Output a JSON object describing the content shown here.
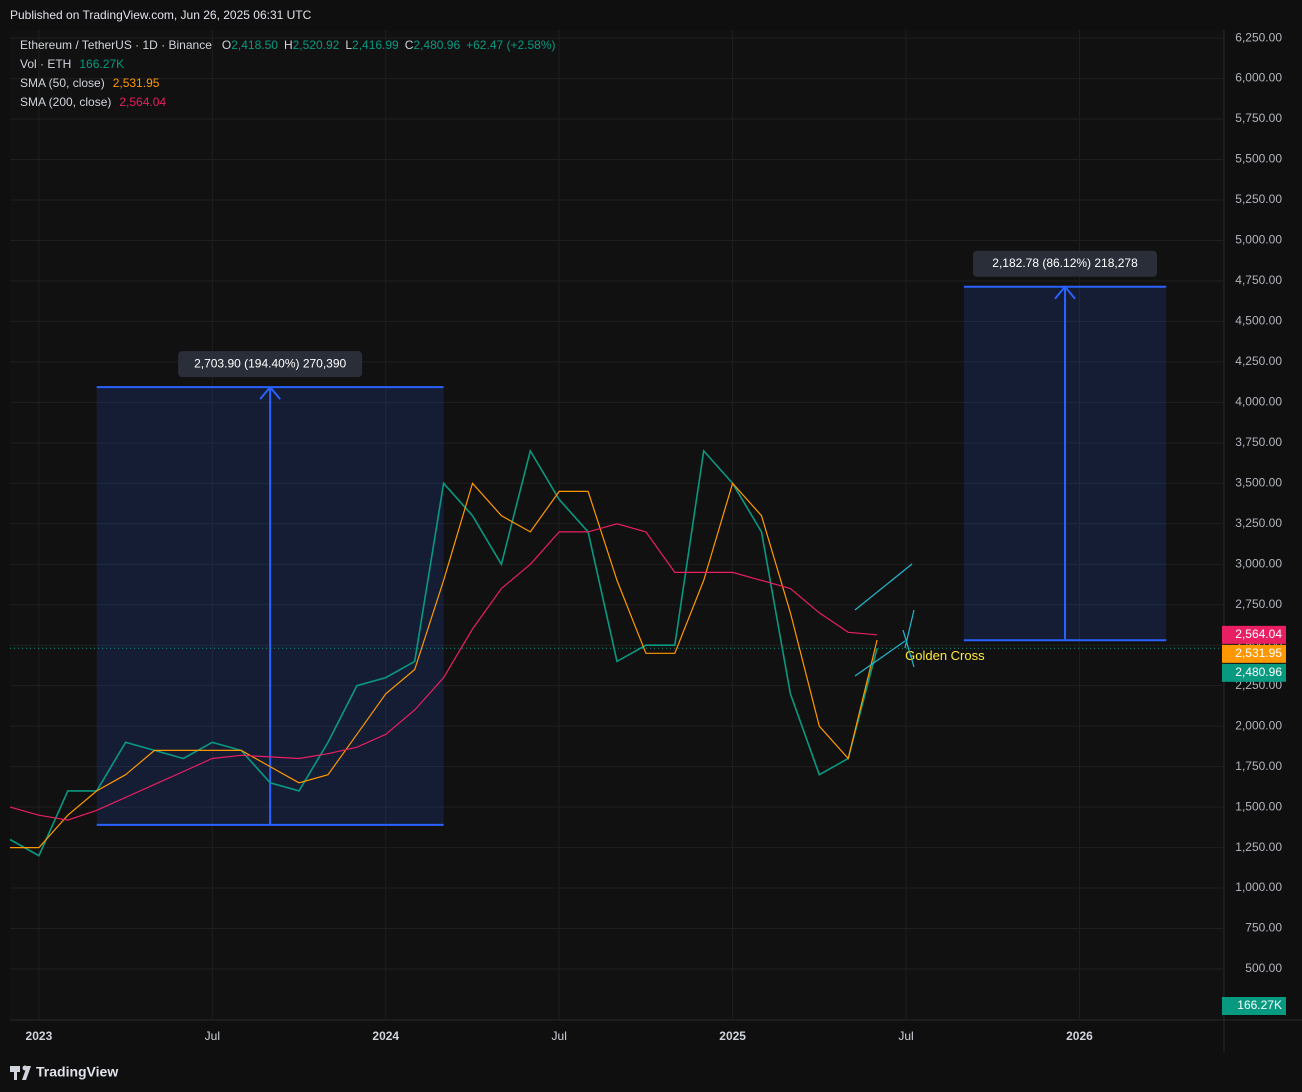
{
  "header": {
    "published": "Published on TradingView.com, Jun 26, 2025 06:31 UTC",
    "brand": "TradingView"
  },
  "chart_data": {
    "type": "line",
    "symbol": "Ethereum / TetherUS · 1D · Binance",
    "ohlc": [
      {
        "key": "O",
        "value": "2,418.50"
      },
      {
        "key": "H",
        "value": "2,520.92"
      },
      {
        "key": "L",
        "value": "2,416.99"
      },
      {
        "key": "C",
        "value": "2,480.96"
      }
    ],
    "change": "+62.47 (+2.58%)",
    "volume": {
      "name": "Vol · ETH",
      "label": "166.27K"
    },
    "x": [
      "2022-12",
      "2023-01",
      "2023-02",
      "2023-03",
      "2023-04",
      "2023-05",
      "2023-06",
      "2023-07",
      "2023-08",
      "2023-09",
      "2023-10",
      "2023-11",
      "2023-12",
      "2024-01",
      "2024-02",
      "2024-03",
      "2024-04",
      "2024-05",
      "2024-06",
      "2024-07",
      "2024-08",
      "2024-09",
      "2024-10",
      "2024-11",
      "2024-12",
      "2025-01",
      "2025-02",
      "2025-03",
      "2025-04",
      "2025-05",
      "2025-06"
    ],
    "series": [
      {
        "name": "Ethereum / TetherUS · 1D · Binance",
        "color": "#089981",
        "last_label": "2,480.96",
        "values": [
          1300,
          1200,
          1600,
          1600,
          1900,
          1850,
          1800,
          1900,
          1850,
          1650,
          1600,
          1900,
          2250,
          2300,
          2400,
          3500,
          3300,
          3000,
          3700,
          3400,
          3200,
          2400,
          2500,
          2500,
          3700,
          3500,
          3200,
          2200,
          1700,
          1800,
          2480.96
        ]
      },
      {
        "name": "SMA (50, close)",
        "color": "#ff9800",
        "last_label": "2,531.95",
        "values": [
          1250,
          1250,
          1450,
          1600,
          1700,
          1850,
          1850,
          1850,
          1850,
          1750,
          1650,
          1700,
          1950,
          2200,
          2350,
          2900,
          3500,
          3300,
          3200,
          3450,
          3450,
          2900,
          2450,
          2450,
          2900,
          3500,
          3300,
          2700,
          2000,
          1800,
          2531.95
        ]
      },
      {
        "name": "SMA (200, close)",
        "color": "#e91e63",
        "last_label": "2,564.04",
        "values": [
          1500,
          1450,
          1420,
          1480,
          1560,
          1640,
          1720,
          1800,
          1820,
          1810,
          1800,
          1830,
          1870,
          1950,
          2100,
          2300,
          2600,
          2850,
          3000,
          3200,
          3200,
          3250,
          3200,
          2950,
          2950,
          2950,
          2900,
          2850,
          2700,
          2580,
          2564.04
        ]
      }
    ],
    "measures": [
      {
        "label": "2,703.90 (194.40%) 270,390",
        "x": [
          "2023-03",
          "2024-03"
        ],
        "y": [
          1390,
          4094
        ]
      },
      {
        "label": "2,182.78 (86.12%) 218,278",
        "x": [
          "2025-09",
          "2026-04"
        ],
        "y": [
          2531,
          4714
        ]
      }
    ],
    "annotation": {
      "text": "Golden Cross",
      "x": "2025-06",
      "y": 2430
    },
    "xlim": [
      "2022-12",
      "2026-06"
    ],
    "xticks": [
      {
        "value": "2023-01",
        "label": "2023"
      },
      {
        "value": "2023-07",
        "label": "Jul"
      },
      {
        "value": "2024-01",
        "label": "2024"
      },
      {
        "value": "2024-07",
        "label": "Jul"
      },
      {
        "value": "2025-01",
        "label": "2025"
      },
      {
        "value": "2025-07",
        "label": "Jul"
      },
      {
        "value": "2026-01",
        "label": "2026"
      }
    ],
    "ylim": [
      185,
      6300
    ],
    "yticks": [
      {
        "value": 500,
        "label": "500.00"
      },
      {
        "value": 750,
        "label": "750.00"
      },
      {
        "value": 1000,
        "label": "1,000.00"
      },
      {
        "value": 1250,
        "label": "1,250.00"
      },
      {
        "value": 1500,
        "label": "1,500.00"
      },
      {
        "value": 1750,
        "label": "1,750.00"
      },
      {
        "value": 2000,
        "label": "2,000.00"
      },
      {
        "value": 2250,
        "label": "2,250.00"
      },
      {
        "value": 2500,
        "label": "2,500.00"
      },
      {
        "value": 2750,
        "label": "2,750.00"
      },
      {
        "value": 3000,
        "label": "3,000.00"
      },
      {
        "value": 3250,
        "label": "3,250.00"
      },
      {
        "value": 3500,
        "label": "3,500.00"
      },
      {
        "value": 3750,
        "label": "3,750.00"
      },
      {
        "value": 4000,
        "label": "4,000.00"
      },
      {
        "value": 4250,
        "label": "4,250.00"
      },
      {
        "value": 4500,
        "label": "4,500.00"
      },
      {
        "value": 4750,
        "label": "4,750.00"
      },
      {
        "value": 5000,
        "label": "5,000.00"
      },
      {
        "value": 5250,
        "label": "5,250.00"
      },
      {
        "value": 5500,
        "label": "5,500.00"
      },
      {
        "value": 5750,
        "label": "5,750.00"
      },
      {
        "value": 6000,
        "label": "6,000.00"
      },
      {
        "value": 6250,
        "label": "6,250.00"
      }
    ],
    "grid": true
  }
}
